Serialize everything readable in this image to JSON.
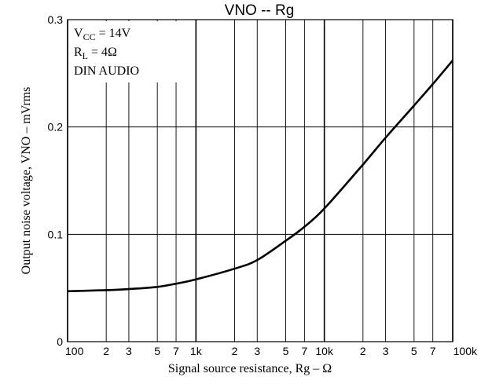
{
  "chart_data": {
    "type": "line",
    "title": "VNO -- Rg",
    "xlabel": "Signal source resistance, Rg – Ω",
    "ylabel": "Output noise voltage, VNO – mVrms",
    "x_scale": "log",
    "xlim": [
      100,
      100000
    ],
    "ylim": [
      0,
      0.3
    ],
    "grid": true,
    "x_major_ticks": [
      {
        "value": 100,
        "label": "100"
      },
      {
        "value": 1000,
        "label": "1k"
      },
      {
        "value": 10000,
        "label": "10k"
      },
      {
        "value": 100000,
        "label": "100k"
      }
    ],
    "x_minor_ticks": [
      {
        "value": 200,
        "label": "2"
      },
      {
        "value": 300,
        "label": "3"
      },
      {
        "value": 500,
        "label": "5"
      },
      {
        "value": 700,
        "label": "7"
      },
      {
        "value": 2000,
        "label": "2"
      },
      {
        "value": 3000,
        "label": "3"
      },
      {
        "value": 5000,
        "label": "5"
      },
      {
        "value": 7000,
        "label": "7"
      },
      {
        "value": 20000,
        "label": "2"
      },
      {
        "value": 30000,
        "label": "3"
      },
      {
        "value": 50000,
        "label": "5"
      },
      {
        "value": 70000,
        "label": "7"
      }
    ],
    "y_ticks": [
      {
        "value": 0,
        "label": "0"
      },
      {
        "value": 0.1,
        "label": "0.1"
      },
      {
        "value": 0.2,
        "label": "0.2"
      },
      {
        "value": 0.3,
        "label": "0.3"
      }
    ],
    "annotation": {
      "line1_main": "V",
      "line1_sub": "CC",
      "line1_rest": " = 14V",
      "line2_main": "R",
      "line2_sub": "L",
      "line2_rest": " = 4Ω",
      "line3": "DIN AUDIO"
    },
    "series": [
      {
        "x": [
          100,
          200,
          300,
          500,
          700,
          1000,
          2000,
          3000,
          5000,
          7000,
          10000,
          20000,
          30000,
          50000,
          70000,
          100000
        ],
        "y": [
          0.047,
          0.048,
          0.049,
          0.051,
          0.054,
          0.058,
          0.068,
          0.076,
          0.094,
          0.107,
          0.124,
          0.165,
          0.19,
          0.22,
          0.24,
          0.262
        ]
      }
    ],
    "colors": {
      "line": "#000000",
      "grid": "#000000",
      "background": "#ffffff"
    }
  }
}
